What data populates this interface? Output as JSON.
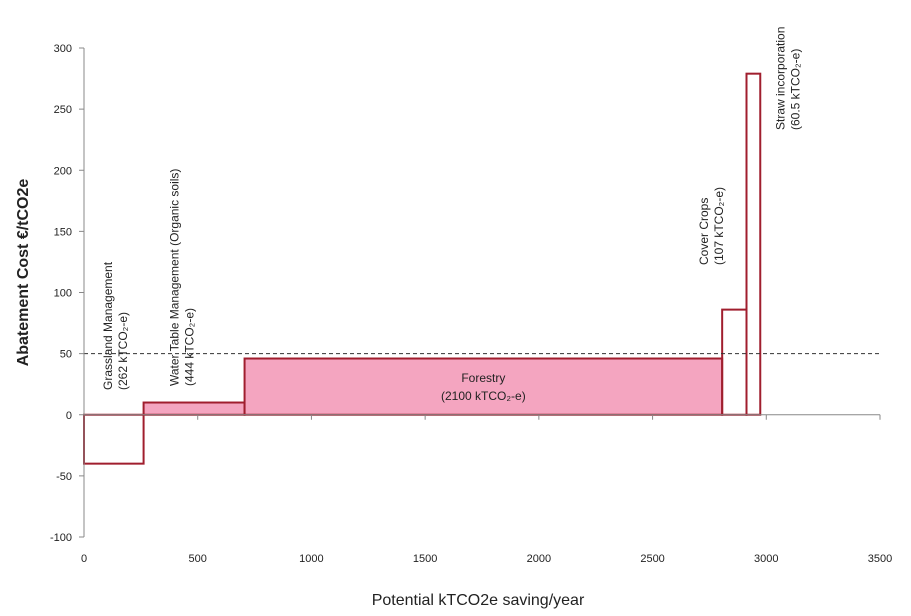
{
  "chart_data": {
    "type": "bar",
    "subtype": "marginal-abatement-cost-curve",
    "title": "",
    "xlabel": "Potential kTCO2e saving/year",
    "ylabel": "Abatement Cost €/tCO2e",
    "xlim": [
      0,
      3500
    ],
    "ylim": [
      -100,
      300
    ],
    "xticks": [
      0,
      500,
      1000,
      1500,
      2000,
      2500,
      3000,
      3500
    ],
    "yticks": [
      -100,
      -50,
      0,
      50,
      100,
      150,
      200,
      250,
      300
    ],
    "grid": false,
    "threshold": {
      "value": 50,
      "style": "dashed"
    },
    "bar_outline_color": "#a01e2e",
    "fill_color": "#f4a5c0",
    "measures": [
      {
        "name": "Grassland Management",
        "potential": 262,
        "cost": -40,
        "filled": false,
        "label_name": "Grassland Management",
        "label_value": "(262 kTCO₂-e)"
      },
      {
        "name": "Water Table Management (Organic soils)",
        "potential": 444,
        "cost": 10,
        "filled": true,
        "label_name": "Water Table Management (Organic soils)",
        "label_value": "(444 kTCO₂-e)"
      },
      {
        "name": "Forestry",
        "potential": 2100,
        "cost": 46,
        "filled": true,
        "label_name": "Forestry",
        "label_value": "(2100 kTCO₂-e)"
      },
      {
        "name": "Cover Crops",
        "potential": 107,
        "cost": 86,
        "filled": false,
        "label_name": "Cover Crops",
        "label_value": "(107 kTCO₂-e)"
      },
      {
        "name": "Straw incorporation",
        "potential": 60.5,
        "cost": 279,
        "filled": false,
        "label_name": "Straw incorporation",
        "label_value": "(60.5 kTCO₂-e)"
      }
    ]
  }
}
